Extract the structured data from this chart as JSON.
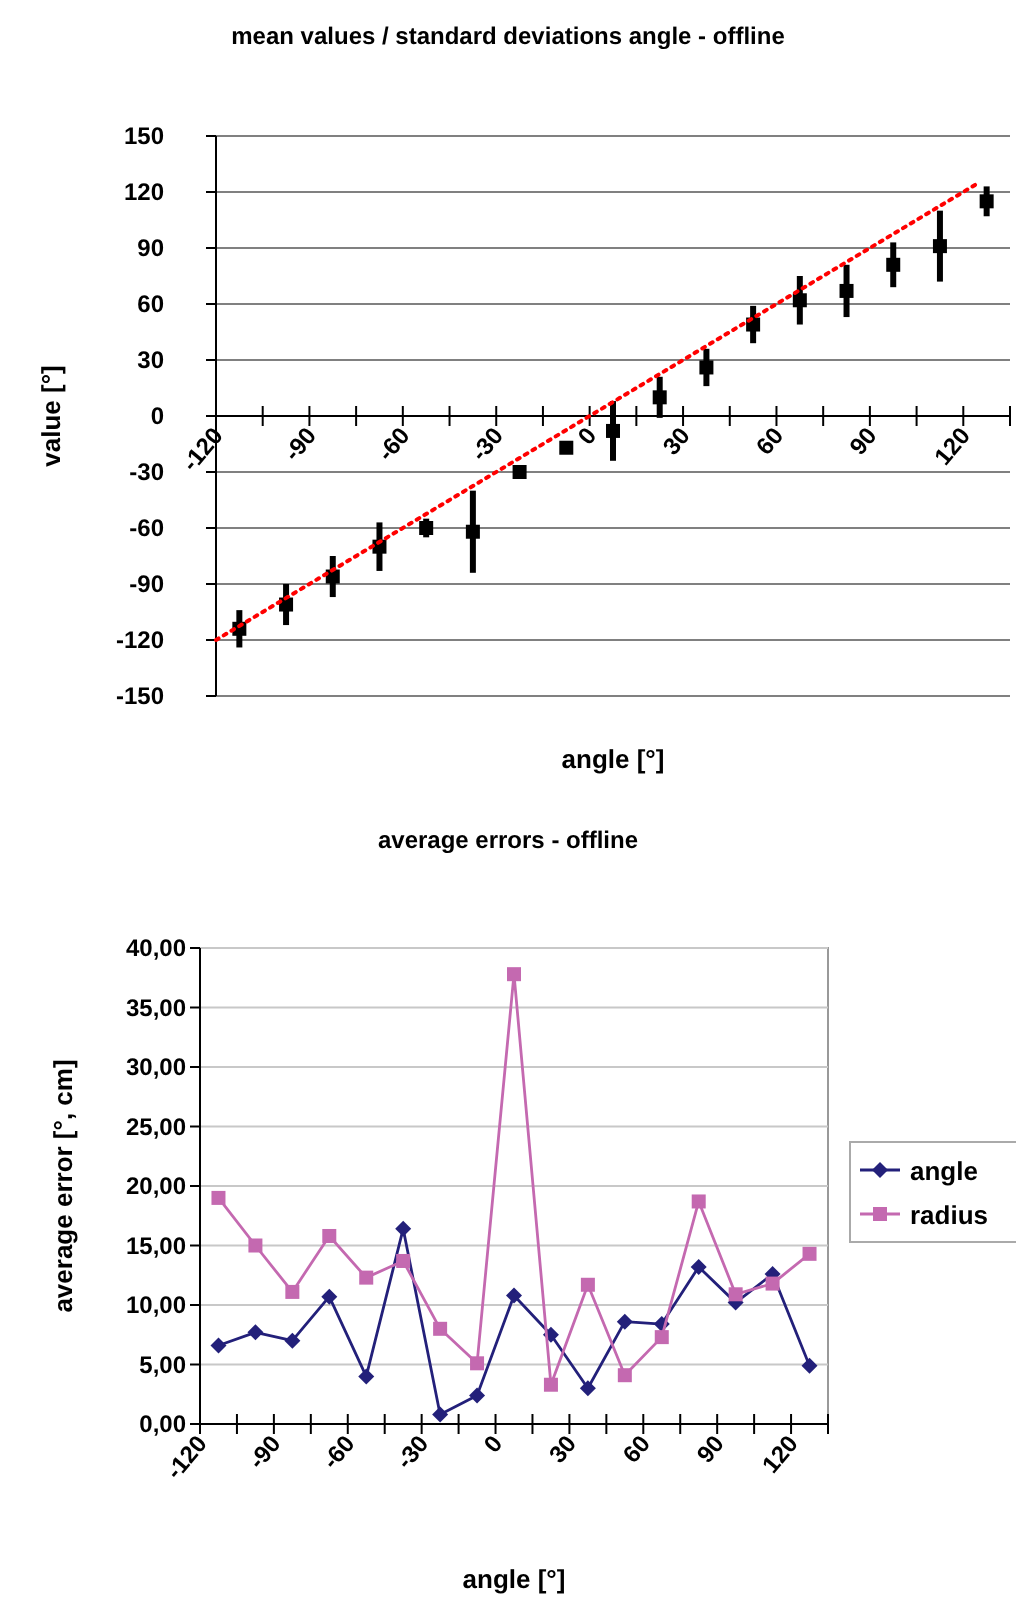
{
  "chart_data": [
    {
      "type": "scatter",
      "title": "mean values / standard deviations angle - offline",
      "xlabel": "angle [°]",
      "ylabel": "value [°]",
      "xlim": [
        -120,
        135
      ],
      "xticks": [
        -120,
        {
          "value": -105,
          "label": null
        },
        -90,
        {
          "value": -75,
          "label": null
        },
        -60,
        {
          "value": -45,
          "label": null
        },
        -30,
        {
          "value": -15,
          "label": null
        },
        0,
        {
          "value": 15,
          "label": null
        },
        30,
        {
          "value": 45,
          "label": null
        },
        60,
        {
          "value": 75,
          "label": null
        },
        90,
        {
          "value": 105,
          "label": null
        },
        120,
        {
          "value": 135,
          "label": null
        }
      ],
      "ylim": [
        -150,
        150
      ],
      "yticks": [
        -150,
        -120,
        -90,
        -60,
        -30,
        0,
        30,
        60,
        90,
        120,
        150
      ],
      "grid": "y",
      "legend": false,
      "series": [
        {
          "color": "#000000",
          "marker": "square",
          "x": [
            -112.5,
            -97.5,
            -82.5,
            -67.5,
            -52.5,
            -37.5,
            -22.5,
            -7.5,
            7.5,
            22.5,
            37.5,
            52.5,
            67.5,
            82.5,
            97.5,
            112.5,
            127.5
          ],
          "values": [
            -114,
            -101,
            -86,
            -70,
            -60,
            -62,
            -30,
            -17,
            -8,
            10,
            26,
            49,
            62,
            67,
            81,
            91,
            115
          ],
          "errors": [
            10,
            11,
            11,
            13,
            5,
            22,
            null,
            null,
            16,
            11,
            10,
            10,
            13,
            14,
            12,
            19,
            8
          ]
        },
        {
          "type": "line",
          "color": "#ff0000",
          "line_style": "dotted",
          "marker": "none",
          "x": [
            -120,
            125
          ],
          "values": [
            -120,
            125
          ]
        }
      ]
    },
    {
      "type": "line",
      "title": "average errors - offline",
      "xlabel": "angle [°]",
      "ylabel": "average error [°, cm]",
      "xlim": [
        -120,
        135
      ],
      "xticks": [
        -120,
        {
          "value": -105,
          "label": null
        },
        -90,
        {
          "value": -75,
          "label": null
        },
        -60,
        {
          "value": -45,
          "label": null
        },
        -30,
        {
          "value": -15,
          "label": null
        },
        0,
        {
          "value": 15,
          "label": null
        },
        30,
        {
          "value": 45,
          "label": null
        },
        60,
        {
          "value": 75,
          "label": null
        },
        90,
        {
          "value": 105,
          "label": null
        },
        120,
        {
          "value": 135,
          "label": null
        }
      ],
      "ylim": [
        0,
        40
      ],
      "yticks": [
        {
          "value": 0,
          "label": "0,00"
        },
        {
          "value": 5,
          "label": "5,00"
        },
        {
          "value": 10,
          "label": "10,00"
        },
        {
          "value": 15,
          "label": "15,00"
        },
        {
          "value": 20,
          "label": "20,00"
        },
        {
          "value": 25,
          "label": "25,00"
        },
        {
          "value": 30,
          "label": "30,00"
        },
        {
          "value": 35,
          "label": "35,00"
        },
        {
          "value": 40,
          "label": "40,00"
        }
      ],
      "grid": "y",
      "legend": "right",
      "x": [
        -112.5,
        -97.5,
        -82.5,
        -67.5,
        -52.5,
        -37.5,
        -22.5,
        -7.5,
        7.5,
        22.5,
        37.5,
        52.5,
        67.5,
        82.5,
        97.5,
        112.5,
        127.5
      ],
      "series": [
        {
          "name": "angle",
          "color": "#23207a",
          "marker": "diamond",
          "values": [
            6.6,
            7.7,
            7.0,
            10.7,
            4.0,
            16.4,
            0.8,
            2.4,
            10.8,
            7.5,
            3.0,
            8.6,
            8.4,
            13.2,
            10.2,
            12.6,
            4.9
          ]
        },
        {
          "name": "radius",
          "color": "#c469b0",
          "marker": "square",
          "values": [
            19.0,
            15.0,
            11.1,
            15.8,
            12.3,
            13.7,
            8.0,
            5.1,
            37.8,
            3.3,
            11.7,
            4.1,
            7.3,
            18.7,
            10.9,
            11.8,
            14.3
          ]
        }
      ]
    }
  ]
}
